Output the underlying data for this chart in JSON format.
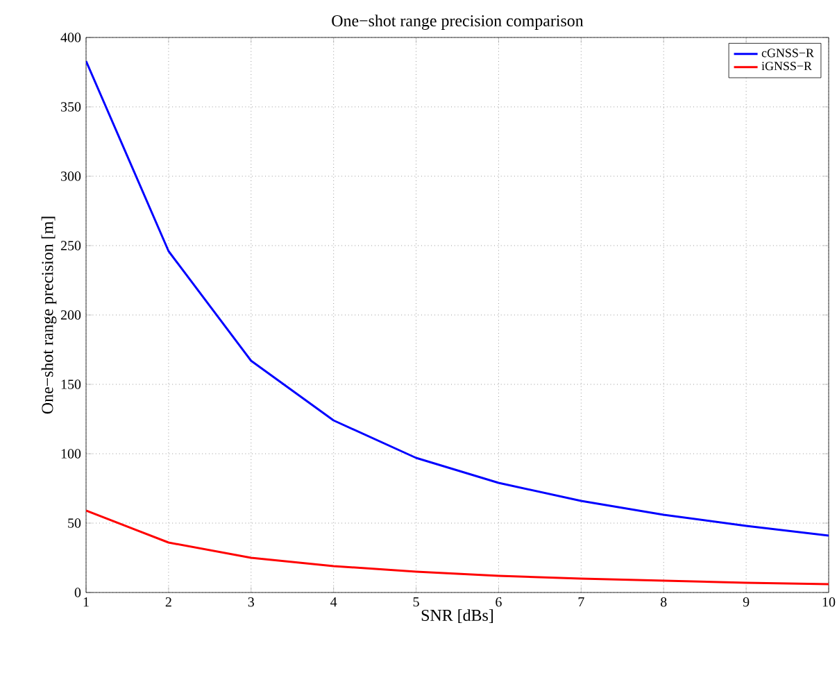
{
  "chart_data": {
    "type": "line",
    "title": "One−shot range precision comparison",
    "xlabel": "SNR [dBs]",
    "ylabel": "One−shot range precision [m]",
    "x": [
      1,
      2,
      3,
      4,
      5,
      6,
      7,
      8,
      9,
      10
    ],
    "series": [
      {
        "name": "cGNSS−R",
        "color": "#0000ff",
        "values": [
          383,
          246,
          167,
          124,
          97,
          79,
          66,
          56,
          48,
          41
        ]
      },
      {
        "name": "iGNSS−R",
        "color": "#ff0000",
        "values": [
          59,
          36,
          25,
          19,
          15,
          12,
          10,
          8.5,
          7,
          6
        ]
      }
    ],
    "xlim": [
      1,
      10
    ],
    "ylim": [
      0,
      400
    ],
    "xticks": [
      1,
      2,
      3,
      4,
      5,
      6,
      7,
      8,
      9,
      10
    ],
    "yticks": [
      0,
      50,
      100,
      150,
      200,
      250,
      300,
      350,
      400
    ],
    "grid": true,
    "legend": "top right",
    "marker": "none",
    "line_style": "solid"
  }
}
